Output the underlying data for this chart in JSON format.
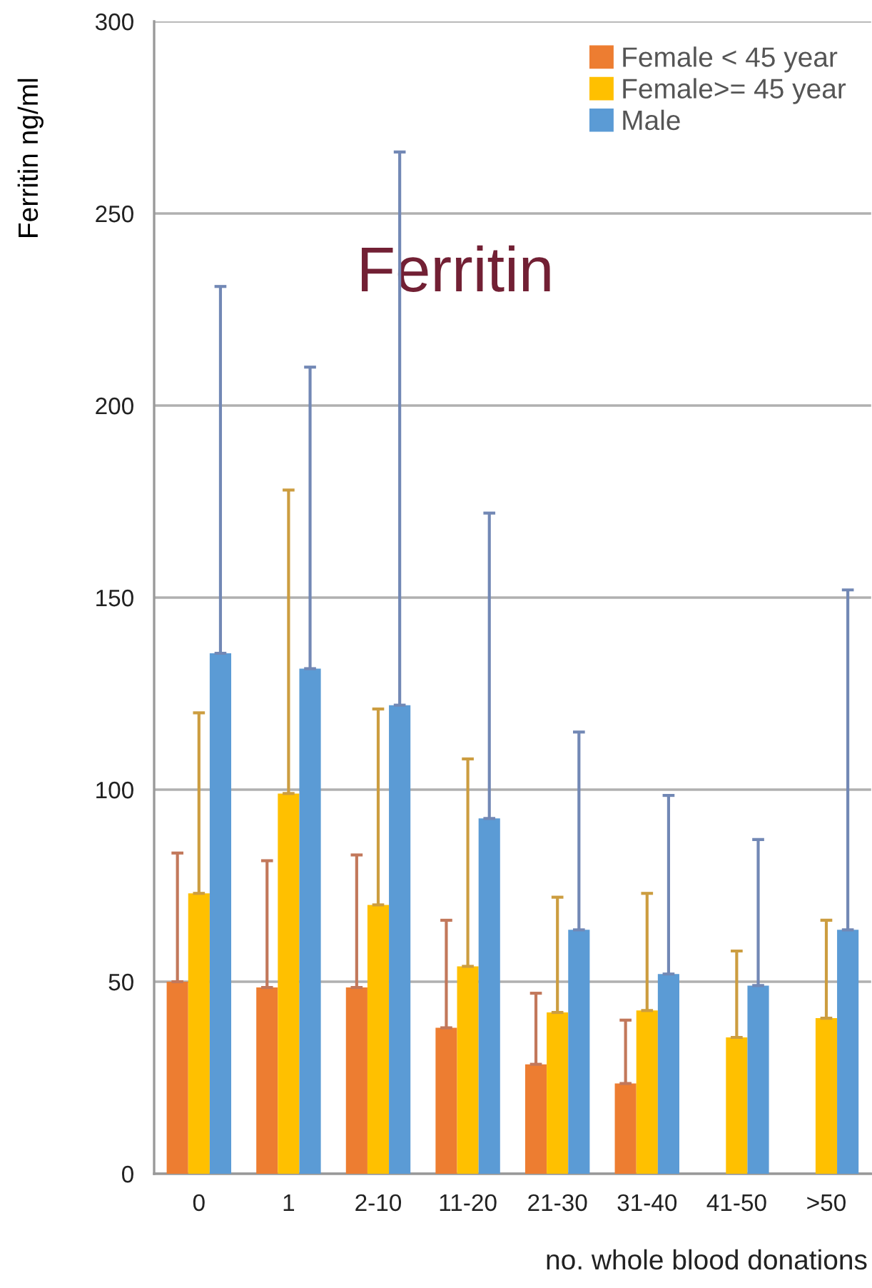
{
  "chart_data": {
    "type": "bar",
    "title": "Ferritin",
    "ylabel": "Ferritin ng/ml",
    "xlabel": "no. whole blood donations",
    "categories": [
      "0",
      "1",
      "2-10",
      "11-20",
      "21-30",
      "31-40",
      "41-50",
      ">50"
    ],
    "series": [
      {
        "name": "Female < 45 year",
        "color": "#ed7d31",
        "values": [
          50,
          48.5,
          48.5,
          38,
          28.5,
          23.5,
          null,
          null
        ],
        "errors": [
          [
            50,
            83.5
          ],
          [
            48.5,
            81.5
          ],
          [
            48.5,
            83
          ],
          [
            38,
            66
          ],
          [
            28.5,
            47
          ],
          [
            23.5,
            40
          ],
          null,
          null
        ]
      },
      {
        "name": "Female>= 45 year",
        "color": "#ffc000",
        "values": [
          73,
          99,
          70,
          54,
          42,
          42.5,
          35.5,
          40.5
        ],
        "errors": [
          [
            73,
            120
          ],
          [
            99,
            178
          ],
          [
            70,
            121
          ],
          [
            54,
            108
          ],
          [
            42,
            72
          ],
          [
            42.5,
            73
          ],
          [
            35.5,
            58
          ],
          [
            40.5,
            66
          ]
        ]
      },
      {
        "name": "Male",
        "color": "#5b9bd5",
        "values": [
          135.5,
          131.5,
          122,
          92.5,
          63.5,
          52,
          49,
          63.5
        ],
        "errors": [
          [
            135.5,
            231
          ],
          [
            131.5,
            210
          ],
          [
            122,
            266
          ],
          [
            92.5,
            172
          ],
          [
            63.5,
            115
          ],
          [
            52,
            98.5
          ],
          [
            49,
            87
          ],
          [
            63.5,
            152
          ]
        ]
      }
    ],
    "ylim": [
      0,
      300
    ],
    "yticks": [
      0,
      50,
      100,
      150,
      200,
      250,
      300
    ],
    "grid": "y",
    "legend": "top right"
  }
}
